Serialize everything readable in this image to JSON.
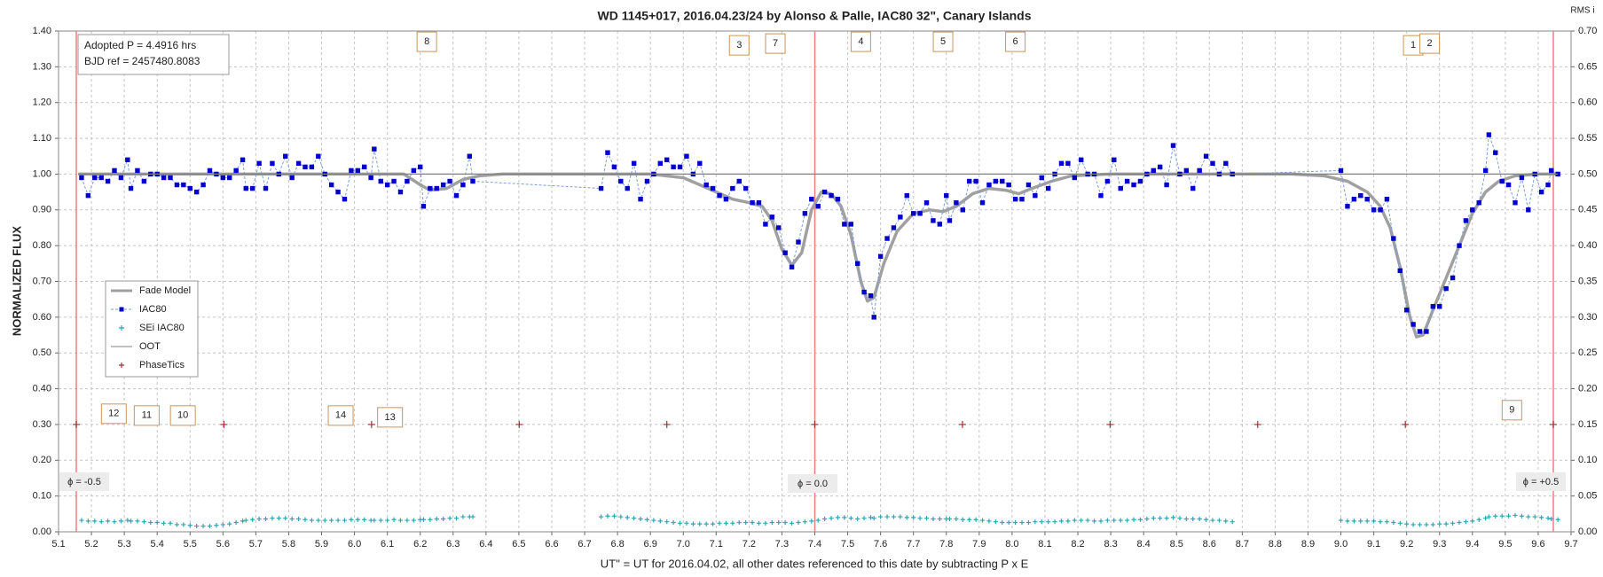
{
  "chart_data": {
    "type": "scatter",
    "title": "WD 1145+017, 2016.04.23/24 by Alonso & Palle, IAC80 32\", Canary Islands",
    "x_label": "UT'' = UT for 2016.04.02, all other dates referenced to this date by subtracting P x E",
    "y_label": "NORMALIZED FLUX",
    "y2_label": "RMS i",
    "info": [
      "Adopted P = 4.4916 hrs",
      "BJD ref = 2457480.8083"
    ],
    "phase_labels": [
      "ϕ = -0.5",
      "ϕ = 0.0",
      "ϕ = +0.5"
    ],
    "annotations": [
      "8",
      "3",
      "7",
      "4",
      "5",
      "6",
      "1",
      "2",
      "12",
      "11",
      "10",
      "14",
      "13",
      "9"
    ],
    "grid": true,
    "legend": "left",
    "xlim": [
      5.1,
      9.7
    ],
    "xticks": [
      5.1,
      5.2,
      5.3,
      5.4,
      5.5,
      5.6,
      5.7,
      5.8,
      5.9,
      {
        "value": 6,
        "label": "6.0"
      },
      6.1,
      6.2,
      6.3,
      6.4,
      6.5,
      6.6,
      6.7,
      6.8,
      6.9,
      {
        "value": 7,
        "label": "7.0"
      },
      7.1,
      7.2,
      7.3,
      7.4,
      7.5,
      7.6,
      7.7,
      7.8,
      7.9,
      {
        "value": 8,
        "label": "8.0"
      },
      8.1,
      8.2,
      8.3,
      8.4,
      8.5,
      8.6,
      8.7,
      8.8,
      8.9,
      {
        "value": 9,
        "label": "9.0"
      },
      9.1,
      9.2,
      9.3,
      9.4,
      9.5,
      9.6,
      9.7
    ],
    "ylim": [
      0,
      1.4
    ],
    "yticks": [
      {
        "value": 0,
        "label": "0.00"
      },
      {
        "value": 0.1,
        "label": "0.10"
      },
      {
        "value": 0.2,
        "label": "0.20"
      },
      {
        "value": 0.3,
        "label": "0.30"
      },
      {
        "value": 0.4,
        "label": "0.40"
      },
      {
        "value": 0.5,
        "label": "0.50"
      },
      {
        "value": 0.6,
        "label": "0.60"
      },
      {
        "value": 0.7,
        "label": "0.70"
      },
      {
        "value": 0.8,
        "label": "0.80"
      },
      {
        "value": 0.9,
        "label": "0.90"
      },
      {
        "value": 1,
        "label": "1.00"
      },
      {
        "value": 1.1,
        "label": "1.10"
      },
      {
        "value": 1.2,
        "label": "1.20"
      },
      {
        "value": 1.3,
        "label": "1.30"
      },
      {
        "value": 1.4,
        "label": "1.40"
      }
    ],
    "y2lim": [
      0,
      0.7
    ],
    "y2ticks": [
      {
        "value": 0,
        "label": "0.00"
      },
      {
        "value": 0.05,
        "label": "0.05"
      },
      {
        "value": 0.1,
        "label": "0.10"
      },
      {
        "value": 0.15,
        "label": "0.15"
      },
      {
        "value": 0.2,
        "label": "0.20"
      },
      {
        "value": 0.25,
        "label": "0.25"
      },
      {
        "value": 0.3,
        "label": "0.30"
      },
      {
        "value": 0.35,
        "label": "0.35"
      },
      {
        "value": 0.4,
        "label": "0.40"
      },
      {
        "value": 0.45,
        "label": "0.45"
      },
      {
        "value": 0.5,
        "label": "0.50"
      },
      {
        "value": 0.55,
        "label": "0.55"
      },
      {
        "value": 0.6,
        "label": "0.60"
      },
      {
        "value": 0.65,
        "label": "0.65"
      },
      {
        "value": 0.7,
        "label": "0.70"
      }
    ],
    "x": [
      5.17,
      5.19,
      5.21,
      5.23,
      5.25,
      5.27,
      5.29,
      5.31,
      5.32,
      5.34,
      5.36,
      5.38,
      5.4,
      5.42,
      5.44,
      5.46,
      5.48,
      5.5,
      5.52,
      5.54,
      5.56,
      5.58,
      5.6,
      5.62,
      5.64,
      5.66,
      5.67,
      5.69,
      5.71,
      5.73,
      5.75,
      5.77,
      5.79,
      5.81,
      5.83,
      5.85,
      5.87,
      5.89,
      5.91,
      5.93,
      5.95,
      5.97,
      5.99,
      6.01,
      6.03,
      6.05,
      6.06,
      6.08,
      6.1,
      6.12,
      6.14,
      6.16,
      6.18,
      6.2,
      6.21,
      6.23,
      6.25,
      6.27,
      6.29,
      6.31,
      6.33,
      6.35,
      6.36,
      6.75,
      6.77,
      6.79,
      6.81,
      6.83,
      6.85,
      6.87,
      6.89,
      6.91,
      6.93,
      6.95,
      6.97,
      6.99,
      7.01,
      7.03,
      7.05,
      7.07,
      7.09,
      7.11,
      7.13,
      7.15,
      7.17,
      7.19,
      7.21,
      7.23,
      7.25,
      7.27,
      7.29,
      7.31,
      7.33,
      7.35,
      7.37,
      7.39,
      7.41,
      7.43,
      7.45,
      7.47,
      7.49,
      7.51,
      7.53,
      7.55,
      7.57,
      7.58,
      7.6,
      7.62,
      7.64,
      7.66,
      7.68,
      7.7,
      7.72,
      7.74,
      7.76,
      7.78,
      7.8,
      7.81,
      7.83,
      7.85,
      7.87,
      7.89,
      7.91,
      7.93,
      7.95,
      7.97,
      7.99,
      8.01,
      8.03,
      8.05,
      8.07,
      8.09,
      8.11,
      8.13,
      8.15,
      8.17,
      8.19,
      8.21,
      8.23,
      8.25,
      8.27,
      8.29,
      8.31,
      8.33,
      8.35,
      8.37,
      8.39,
      8.41,
      8.43,
      8.45,
      8.47,
      8.49,
      8.51,
      8.53,
      8.55,
      8.57,
      8.59,
      8.61,
      8.63,
      8.65,
      8.67,
      9.0,
      9.02,
      9.04,
      9.06,
      9.08,
      9.1,
      9.12,
      9.14,
      9.16,
      9.18,
      9.2,
      9.22,
      9.24,
      9.26,
      9.28,
      9.3,
      9.32,
      9.34,
      9.36,
      9.38,
      9.4,
      9.42,
      9.44,
      9.45,
      9.47,
      9.49,
      9.51,
      9.53,
      9.55,
      9.57,
      9.59,
      9.61,
      9.63,
      9.64,
      9.66
    ],
    "series": [
      {
        "name": "Fade Model",
        "color": "#a0a0a0",
        "style": "line",
        "x": [
          5.16,
          6.15,
          6.2,
          6.23,
          6.28,
          6.33,
          6.38,
          6.45,
          6.9,
          7.0,
          7.05,
          7.1,
          7.15,
          7.2,
          7.24,
          7.27,
          7.3,
          7.33,
          7.36,
          7.39,
          7.42,
          7.45,
          7.48,
          7.51,
          7.54,
          7.56,
          7.58,
          7.61,
          7.65,
          7.7,
          7.75,
          7.79,
          7.83,
          7.88,
          7.93,
          7.98,
          8.02,
          8.06,
          8.12,
          8.18,
          8.3,
          8.85,
          8.95,
          9.02,
          9.08,
          9.12,
          9.15,
          9.18,
          9.21,
          9.23,
          9.25,
          9.28,
          9.32,
          9.36,
          9.4,
          9.44,
          9.48,
          9.53,
          9.6,
          9.66
        ],
        "values": [
          1.0,
          1.0,
          0.97,
          0.955,
          0.96,
          0.985,
          0.995,
          1.0,
          1.0,
          0.99,
          0.97,
          0.95,
          0.93,
          0.92,
          0.91,
          0.87,
          0.79,
          0.745,
          0.78,
          0.9,
          0.95,
          0.945,
          0.91,
          0.83,
          0.7,
          0.645,
          0.655,
          0.75,
          0.84,
          0.89,
          0.9,
          0.895,
          0.91,
          0.945,
          0.96,
          0.955,
          0.945,
          0.96,
          0.98,
          0.995,
          1.0,
          1.0,
          0.995,
          0.98,
          0.95,
          0.91,
          0.85,
          0.74,
          0.6,
          0.545,
          0.55,
          0.62,
          0.71,
          0.8,
          0.89,
          0.95,
          0.98,
          0.995,
          1.0,
          1.0
        ]
      },
      {
        "name": "IAC80",
        "color": "#0000c8",
        "style": "line-markers",
        "values": [
          0.99,
          0.94,
          0.99,
          0.99,
          0.98,
          1.01,
          0.99,
          1.04,
          0.96,
          1.01,
          0.98,
          1.0,
          1.0,
          0.99,
          0.99,
          0.97,
          0.97,
          0.96,
          0.95,
          0.97,
          1.01,
          1.0,
          0.99,
          0.99,
          1.01,
          1.04,
          0.96,
          0.96,
          1.03,
          0.96,
          1.03,
          1.0,
          1.05,
          0.99,
          1.03,
          1.02,
          1.02,
          1.05,
          1.0,
          0.97,
          0.95,
          0.93,
          1.01,
          1.01,
          1.02,
          0.99,
          1.07,
          0.98,
          0.97,
          0.98,
          0.95,
          0.98,
          1.01,
          1.02,
          0.91,
          0.96,
          0.96,
          0.97,
          0.98,
          0.94,
          0.97,
          1.05,
          0.98,
          0.96,
          1.06,
          1.02,
          0.98,
          0.96,
          1.03,
          0.93,
          0.98,
          1.0,
          1.03,
          1.04,
          1.02,
          1.02,
          1.05,
          1.0,
          1.03,
          0.97,
          0.96,
          0.94,
          0.93,
          0.96,
          0.98,
          0.96,
          0.92,
          0.92,
          0.86,
          0.88,
          0.85,
          0.78,
          0.74,
          0.81,
          0.89,
          0.93,
          0.91,
          0.95,
          0.94,
          0.93,
          0.86,
          0.86,
          0.75,
          0.67,
          0.66,
          0.6,
          0.77,
          0.82,
          0.85,
          0.88,
          0.94,
          0.89,
          0.89,
          0.92,
          0.87,
          0.86,
          0.94,
          0.87,
          0.92,
          0.9,
          0.98,
          0.98,
          0.92,
          0.97,
          0.98,
          0.98,
          0.97,
          0.93,
          0.93,
          0.97,
          0.94,
          0.99,
          0.96,
          1.0,
          1.03,
          1.03,
          0.99,
          1.04,
          1.0,
          1.0,
          0.94,
          0.98,
          1.04,
          0.96,
          0.98,
          0.97,
          0.98,
          1.0,
          1.01,
          1.02,
          0.97,
          1.08,
          1.0,
          1.01,
          0.96,
          1.01,
          1.05,
          1.03,
          1.0,
          1.03,
          1.0,
          1.01,
          0.91,
          0.93,
          0.94,
          0.93,
          0.9,
          0.9,
          0.93,
          0.82,
          0.73,
          0.62,
          0.58,
          0.56,
          0.56,
          0.63,
          0.63,
          0.68,
          0.71,
          0.8,
          0.87,
          0.9,
          0.92,
          1.01,
          1.11,
          1.06,
          0.98,
          0.97,
          0.92,
          0.99,
          0.9,
          1.0,
          0.95,
          0.97,
          1.01,
          1.0
        ]
      },
      {
        "name": "SEi IAC80",
        "color": "#2fa5b5",
        "style": "plus",
        "axis": "y2",
        "values": [
          0.016,
          0.015,
          0.015,
          0.014,
          0.015,
          0.014,
          0.015,
          0.016,
          0.015,
          0.015,
          0.014,
          0.013,
          0.013,
          0.012,
          0.012,
          0.01,
          0.01,
          0.009,
          0.008,
          0.008,
          0.008,
          0.009,
          0.01,
          0.011,
          0.013,
          0.015,
          0.016,
          0.017,
          0.018,
          0.018,
          0.019,
          0.019,
          0.019,
          0.018,
          0.018,
          0.017,
          0.016,
          0.016,
          0.016,
          0.016,
          0.016,
          0.016,
          0.017,
          0.017,
          0.017,
          0.016,
          0.016,
          0.016,
          0.016,
          0.017,
          0.016,
          0.016,
          0.016,
          0.017,
          0.017,
          0.017,
          0.018,
          0.018,
          0.019,
          0.019,
          0.021,
          0.021,
          0.021,
          0.021,
          0.022,
          0.022,
          0.021,
          0.02,
          0.019,
          0.018,
          0.017,
          0.016,
          0.015,
          0.014,
          0.013,
          0.012,
          0.012,
          0.011,
          0.011,
          0.011,
          0.011,
          0.012,
          0.012,
          0.012,
          0.013,
          0.013,
          0.013,
          0.012,
          0.012,
          0.013,
          0.013,
          0.013,
          0.012,
          0.013,
          0.014,
          0.015,
          0.016,
          0.018,
          0.019,
          0.02,
          0.02,
          0.019,
          0.018,
          0.019,
          0.02,
          0.019,
          0.021,
          0.021,
          0.021,
          0.021,
          0.02,
          0.02,
          0.019,
          0.019,
          0.018,
          0.018,
          0.018,
          0.018,
          0.018,
          0.017,
          0.017,
          0.017,
          0.016,
          0.015,
          0.014,
          0.013,
          0.013,
          0.013,
          0.013,
          0.013,
          0.014,
          0.014,
          0.014,
          0.014,
          0.015,
          0.015,
          0.016,
          0.016,
          0.016,
          0.015,
          0.015,
          0.016,
          0.016,
          0.016,
          0.016,
          0.017,
          0.017,
          0.018,
          0.019,
          0.019,
          0.019,
          0.02,
          0.019,
          0.018,
          0.018,
          0.018,
          0.017,
          0.016,
          0.016,
          0.015,
          0.014,
          0.016,
          0.015,
          0.015,
          0.015,
          0.015,
          0.015,
          0.014,
          0.014,
          0.013,
          0.012,
          0.011,
          0.01,
          0.01,
          0.01,
          0.01,
          0.011,
          0.011,
          0.012,
          0.013,
          0.014,
          0.015,
          0.017,
          0.019,
          0.021,
          0.022,
          0.022,
          0.022,
          0.023,
          0.022,
          0.021,
          0.021,
          0.02,
          0.019,
          0.018,
          0.017
        ]
      },
      {
        "name": "OOT",
        "color": "#808080",
        "style": "line-thin",
        "x": [
          5.16,
          9.66
        ],
        "values": [
          1.0,
          1.0
        ]
      },
      {
        "name": "PhaseTics",
        "color": "#993333",
        "style": "plus",
        "x": [
          5.154,
          5.603,
          6.052,
          6.501,
          6.95,
          7.4,
          7.849,
          8.298,
          8.747,
          9.196,
          9.646
        ],
        "values": [
          0.3,
          0.3,
          0.3,
          0.3,
          0.3,
          0.3,
          0.3,
          0.3,
          0.3,
          0.3,
          0.3
        ]
      }
    ]
  }
}
